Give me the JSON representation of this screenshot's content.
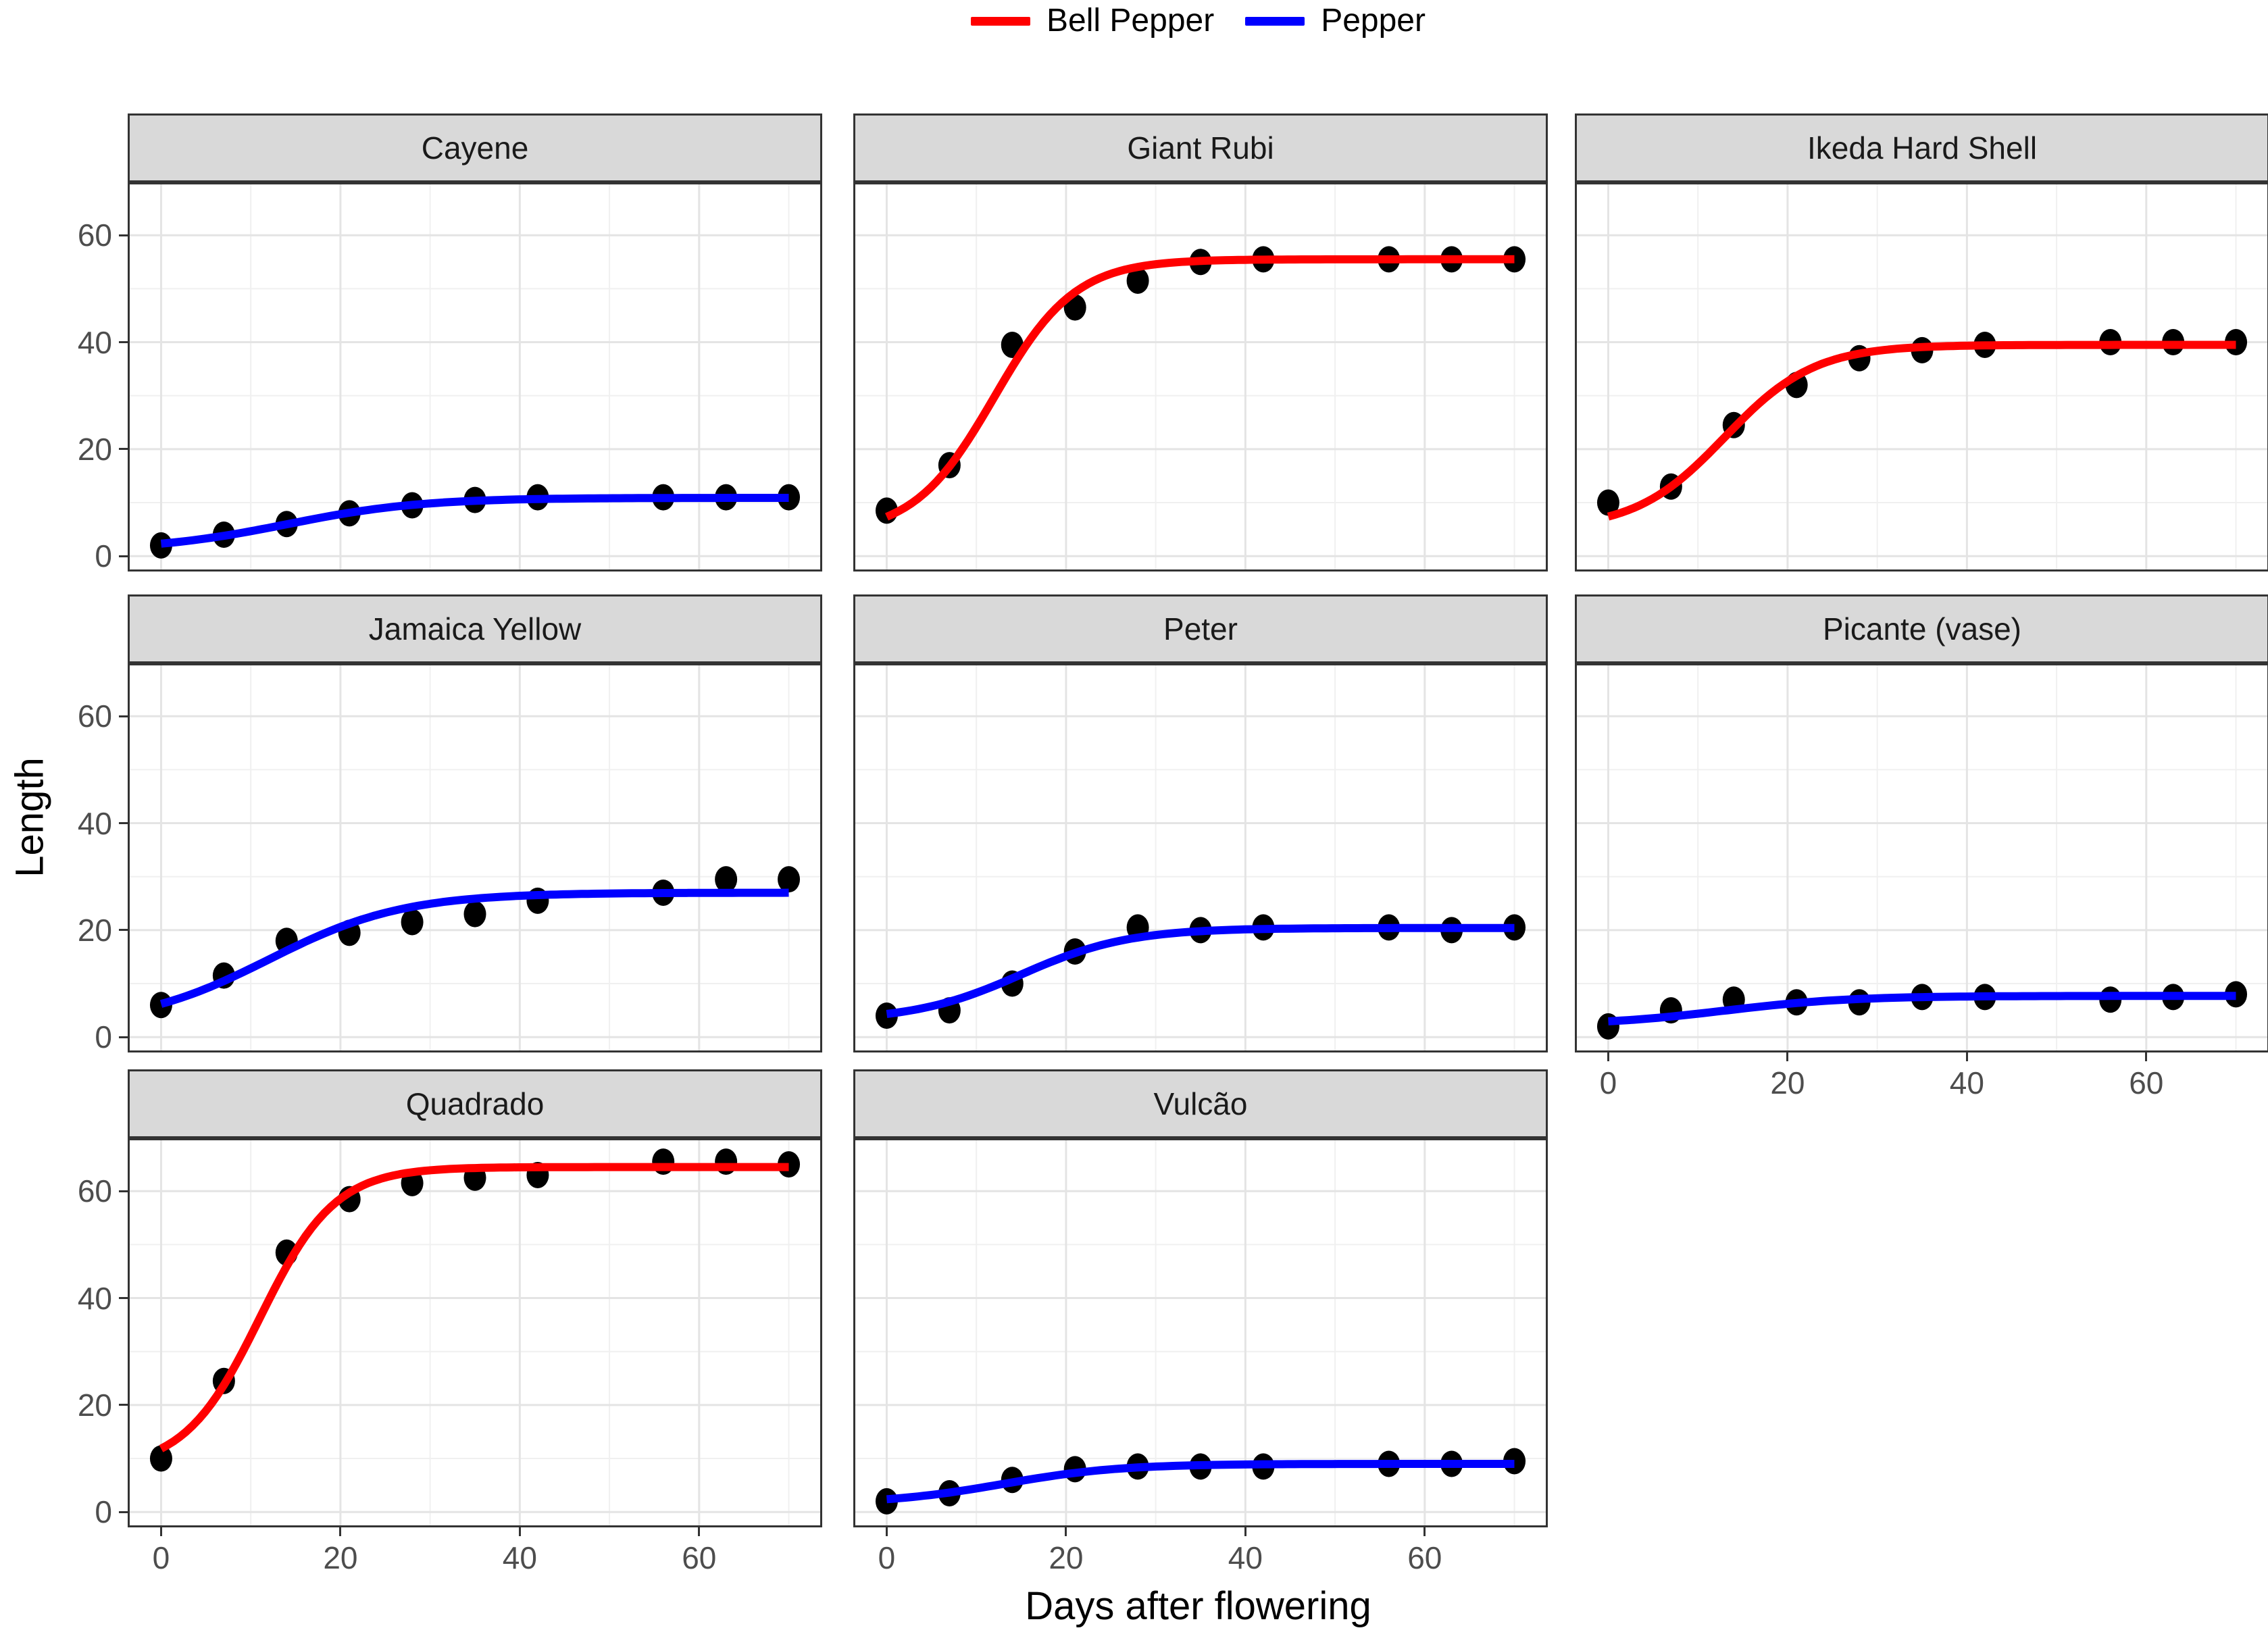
{
  "legend": {
    "items": [
      {
        "label": "Bell Pepper",
        "color": "#ff0000"
      },
      {
        "label": "Pepper",
        "color": "#0000ff"
      }
    ]
  },
  "axes": {
    "x": {
      "title": "Days after flowering",
      "ticks": [
        0,
        20,
        40,
        60
      ],
      "minor_ticks": [
        10,
        30,
        50,
        70
      ],
      "domain": [
        -3.5,
        73.5
      ]
    },
    "y": {
      "title": "Length",
      "ticks": [
        0,
        20,
        40,
        60
      ],
      "minor_ticks": [
        10,
        30,
        50
      ],
      "domain": [
        -2.5,
        69.5
      ]
    }
  },
  "chart_data": {
    "type": "scatter",
    "title": "",
    "xlabel": "Days after flowering",
    "ylabel": "Length",
    "x_shared": [
      0,
      7,
      14,
      21,
      28,
      35,
      42,
      56,
      63,
      70
    ],
    "facets": [
      {
        "title": "Cayene",
        "series": "Pepper",
        "points": [
          2,
          4,
          6,
          8,
          9.5,
          10.5,
          11,
          11,
          11,
          11
        ],
        "curve": {
          "A": 1.0,
          "L": 10.9,
          "xm": 14,
          "s": 7.5
        }
      },
      {
        "title": "Giant Rubi",
        "series": "Bell Pepper",
        "points": [
          8.5,
          17,
          39.5,
          46.5,
          51.5,
          55,
          55.5,
          55.5,
          55.5,
          55.5
        ],
        "curve": {
          "A": 4.0,
          "L": 55.5,
          "xm": 12,
          "s": 4.5
        }
      },
      {
        "title": "Ikeda Hard Shell",
        "series": "Bell Pepper",
        "points": [
          10,
          13,
          24.5,
          32,
          37,
          38.5,
          39.5,
          40,
          40,
          40
        ],
        "curve": {
          "A": 5.0,
          "L": 39.5,
          "xm": 13,
          "s": 5
        }
      },
      {
        "title": "Jamaica Yellow",
        "series": "Pepper",
        "points": [
          6,
          11.5,
          18,
          19.5,
          21.5,
          23,
          25.5,
          27,
          29.5,
          29.5
        ],
        "curve": {
          "A": 2.0,
          "L": 27.0,
          "xm": 12,
          "s": 7.5
        }
      },
      {
        "title": "Peter",
        "series": "Pepper",
        "points": [
          4,
          5,
          10,
          16,
          20.5,
          20,
          20.5,
          20.5,
          20,
          20.5
        ],
        "curve": {
          "A": 3.0,
          "L": 20.4,
          "xm": 15,
          "s": 6
        }
      },
      {
        "title": "Picante (vase)",
        "series": "Pepper",
        "points": [
          2,
          5,
          7,
          6.5,
          6.5,
          7.5,
          7.5,
          7,
          7.5,
          8
        ],
        "curve": {
          "A": 2.2,
          "L": 7.7,
          "xm": 13,
          "s": 7
        }
      },
      {
        "title": "Quadrado",
        "series": "Bell Pepper",
        "points": [
          10,
          24.5,
          48.5,
          58.5,
          61.5,
          62.5,
          63,
          65.5,
          65.5,
          65
        ],
        "curve": {
          "A": 8.0,
          "L": 64.5,
          "xm": 11,
          "s": 4.2
        }
      },
      {
        "title": "Vulcão",
        "series": "Pepper",
        "points": [
          2,
          3.5,
          6,
          8,
          8.5,
          8.5,
          8.5,
          9,
          9,
          9.5
        ],
        "curve": {
          "A": 1.5,
          "L": 9.0,
          "xm": 13,
          "s": 6.5
        }
      }
    ]
  }
}
